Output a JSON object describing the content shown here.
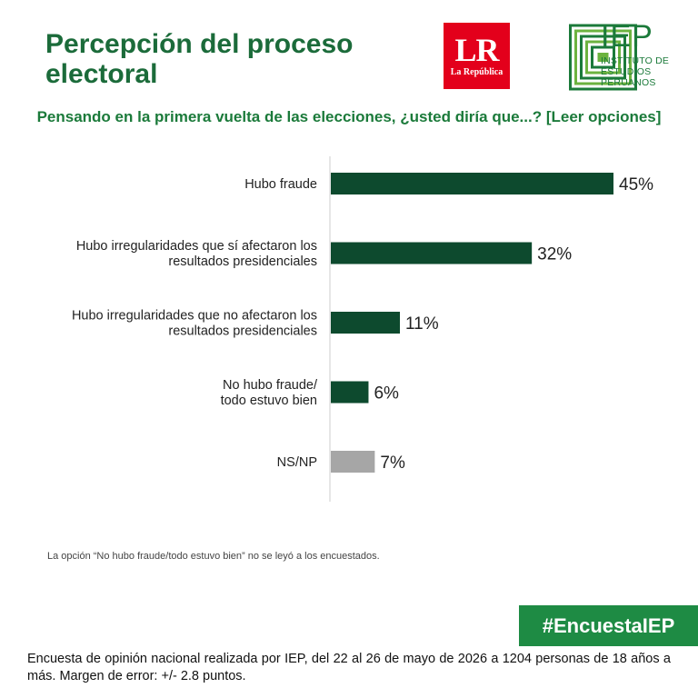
{
  "header": {
    "title": "Percepción del proceso electoral",
    "logo_lr": {
      "mark": "LR",
      "name": "La República",
      "color": "#e3001b"
    },
    "logo_iep": {
      "mark": "IEP",
      "lines": [
        "INSTITUTO DE",
        "ESTUDIOS",
        "PERUANOS"
      ],
      "color": "#1b7a3a"
    }
  },
  "question": "Pensando en la primera vuelta de las elecciones, ¿usted diría que...? [Leer opciones]",
  "chart_data": {
    "type": "bar",
    "orientation": "horizontal",
    "categories": [
      [
        "Hubo fraude"
      ],
      [
        "Hubo irregularidades que sí afectaron los",
        "resultados presidenciales"
      ],
      [
        "Hubo irregularidades que no afectaron los",
        "resultados presidenciales"
      ],
      [
        "No hubo fraude/",
        "todo estuvo bien"
      ],
      [
        "NS/NP"
      ]
    ],
    "values": [
      45,
      32,
      11,
      6,
      7
    ],
    "value_labels": [
      "45%",
      "32%",
      "11%",
      "6%",
      "7%"
    ],
    "colors": [
      "#0d4a2e",
      "#0d4a2e",
      "#0d4a2e",
      "#0d4a2e",
      "#a6a6a6"
    ],
    "xlim": [
      0,
      45
    ],
    "grid": false,
    "legend": "none"
  },
  "note": "La opción “No hubo fraude/todo estuvo bien” no se leyó a los encuestados.",
  "hashtag": "#EncuestaIEP",
  "footer": "Encuesta de opinión nacional realizada por IEP, del 22 al 26 de mayo de 2026 a 1204 personas de 18 años a más. Margen de error: +/- 2.8 puntos."
}
